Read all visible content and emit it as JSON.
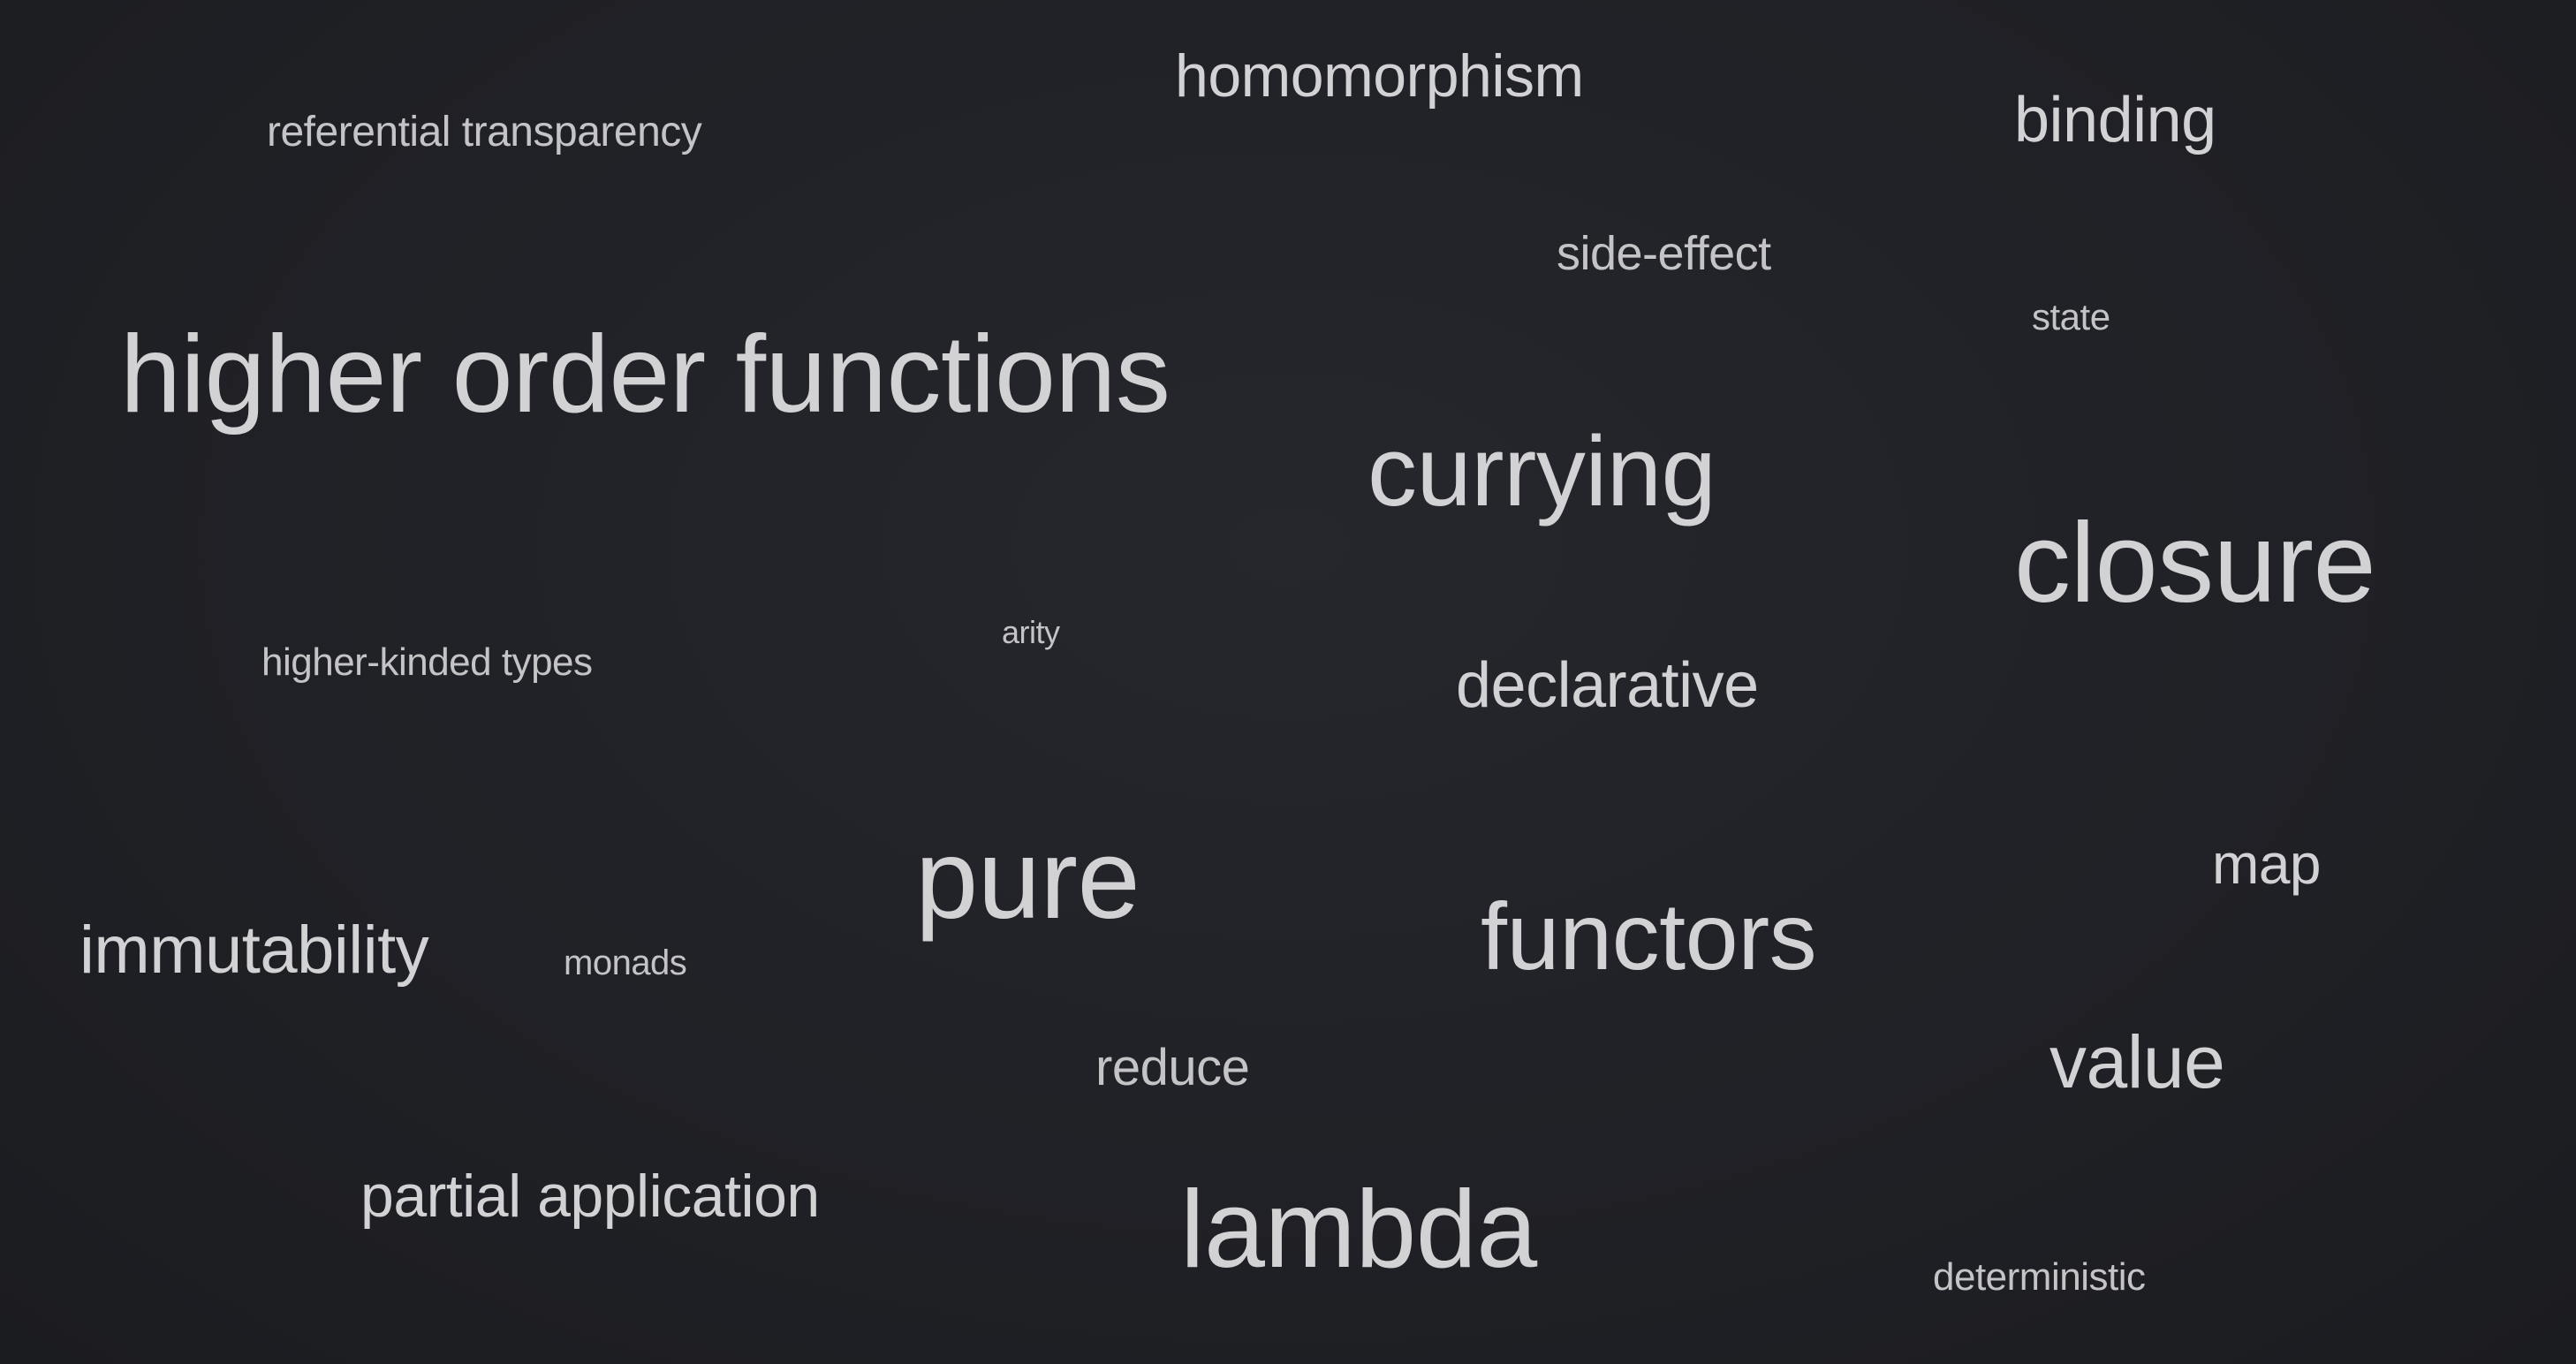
{
  "word_cloud": {
    "text_color": "#d2d2d4",
    "dim_text_color": "#c4c4c7",
    "background_color": "#212227",
    "terms": [
      {
        "id": "homomorphism",
        "text": "homomorphism"
      },
      {
        "id": "referential-transparency",
        "text": "referential transparency"
      },
      {
        "id": "binding",
        "text": "binding"
      },
      {
        "id": "side-effect",
        "text": "side-effect"
      },
      {
        "id": "state",
        "text": "state"
      },
      {
        "id": "higher-order-functions",
        "text": "higher order functions"
      },
      {
        "id": "currying",
        "text": "currying"
      },
      {
        "id": "closure",
        "text": "closure"
      },
      {
        "id": "arity",
        "text": "arity"
      },
      {
        "id": "higher-kinded-types",
        "text": "higher-kinded types"
      },
      {
        "id": "declarative",
        "text": "declarative"
      },
      {
        "id": "pure",
        "text": "pure"
      },
      {
        "id": "map",
        "text": "map"
      },
      {
        "id": "immutability",
        "text": "immutability"
      },
      {
        "id": "monads",
        "text": "monads"
      },
      {
        "id": "functors",
        "text": "functors"
      },
      {
        "id": "reduce",
        "text": "reduce"
      },
      {
        "id": "value",
        "text": "value"
      },
      {
        "id": "partial-application",
        "text": "partial application"
      },
      {
        "id": "lambda",
        "text": "lambda"
      },
      {
        "id": "deterministic",
        "text": "deterministic"
      }
    ]
  }
}
